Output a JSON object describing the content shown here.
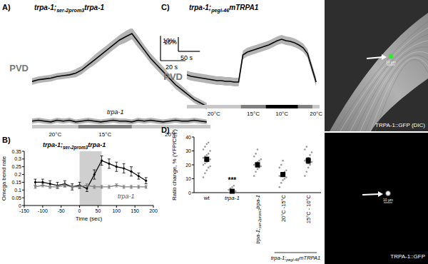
{
  "subscripts": [
    "ser-2prom3",
    "pegl-46"
  ],
  "chart_data": [
    {
      "panel_label": "A)",
      "type": "line",
      "title": "trpa-1;ser-2prom3trpa-1",
      "tick_labels": false,
      "x": [
        0,
        5,
        10,
        15,
        20,
        25,
        30,
        35,
        40,
        45,
        50,
        55,
        60,
        65,
        70,
        75,
        80,
        85,
        90,
        95,
        100,
        105,
        110,
        115,
        120,
        125,
        130,
        135,
        140
      ],
      "xlim": [
        0,
        143
      ],
      "ylim": [
        -4,
        56
      ],
      "series": [
        {
          "name": "PVD",
          "color": "#000000",
          "values": [
            24,
            25,
            25.5,
            26,
            27,
            27.5,
            28,
            29,
            31,
            34,
            37,
            40,
            43,
            46,
            49,
            51,
            53,
            48,
            43,
            38,
            34,
            30,
            26,
            22,
            19,
            16,
            13,
            11,
            9
          ],
          "errors": [
            2,
            2,
            2,
            2,
            2,
            2,
            2,
            2.5,
            2.5,
            2.5,
            3,
            3,
            3,
            3,
            3,
            3.5,
            3.5,
            3.5,
            3,
            3,
            3,
            3,
            2.5,
            2.5,
            2.5,
            2,
            2,
            2,
            2
          ]
        },
        {
          "name": "trpa-1",
          "color": "#000000",
          "values": [
            0,
            0.5,
            0,
            -0.5,
            0.5,
            0,
            0.5,
            -0.5,
            0,
            0.5,
            0,
            -0.5,
            0,
            0.5,
            0,
            0,
            -0.5,
            0.5,
            0,
            0.5,
            0,
            -0.5,
            0,
            0.5,
            0,
            0,
            0.5,
            0,
            -0.5
          ],
          "errors": [
            1.5,
            1.5,
            1.5,
            1.5,
            1.5,
            1.5,
            1.5,
            1.5,
            1.5,
            1.5,
            1.5,
            1.5,
            1.5,
            1.5,
            1.5,
            1.5,
            1.5,
            1.5,
            1.5,
            1.5,
            1.5,
            1.5,
            1.5,
            1.5,
            1.5,
            1.5,
            1.5,
            1.5,
            1.5
          ]
        }
      ],
      "temperature_bar": [
        {
          "label": "20°C",
          "start": 0,
          "end": 37,
          "color": "#c8c8c8"
        },
        {
          "label": "15°C",
          "start": 37,
          "end": 80,
          "color": "#808080"
        },
        {
          "label": "20°C",
          "start": 80,
          "end": 143,
          "color": "#c8c8c8"
        }
      ],
      "scale_bar": {
        "x": 20,
        "y": 15,
        "x_label": "20 s",
        "y_label": "15%"
      }
    },
    {
      "panel_label": "B)",
      "type": "line",
      "marker": "circle",
      "x": [
        -120,
        -100,
        -80,
        -60,
        -40,
        -20,
        0,
        20,
        40,
        60,
        80,
        100,
        120,
        140,
        160,
        180
      ],
      "xlim": [
        -150,
        200
      ],
      "ylim": [
        0,
        0.35
      ],
      "xticks": [
        -150,
        -100,
        -50,
        0,
        50,
        100,
        150,
        200
      ],
      "yticks": [
        0,
        0.05,
        0.1,
        0.15,
        0.2,
        0.25,
        0.3,
        0.35
      ],
      "x_label": "Time (sec)",
      "y_label": "Omega bend rate",
      "stimulus": {
        "start": 0,
        "end": 60
      },
      "series": [
        {
          "name": "trpa-1;ser-2prom3trpa-1",
          "color": "#000000",
          "values": [
            0.15,
            0.15,
            0.14,
            0.13,
            0.14,
            0.12,
            0.13,
            0.11,
            0.2,
            0.29,
            0.27,
            0.25,
            0.24,
            0.22,
            0.19,
            0.16
          ],
          "errors": [
            0.02,
            0.02,
            0.02,
            0.02,
            0.02,
            0.02,
            0.02,
            0.02,
            0.03,
            0.03,
            0.03,
            0.03,
            0.03,
            0.03,
            0.02,
            0.02
          ]
        },
        {
          "name": "trpa-1",
          "color": "#808080",
          "values": [
            0.12,
            0.13,
            0.12,
            0.12,
            0.13,
            0.12,
            0.12,
            0.13,
            0.12,
            0.12,
            0.12,
            0.13,
            0.12,
            0.12,
            0.12,
            0.12
          ],
          "errors": [
            0.01,
            0.01,
            0.01,
            0.01,
            0.01,
            0.01,
            0.01,
            0.01,
            0.01,
            0.01,
            0.01,
            0.01,
            0.01,
            0.01,
            0.01,
            0.01
          ]
        }
      ]
    },
    {
      "panel_label": "C)",
      "type": "line",
      "title": "trpa-1;pegl-46mTRPA1",
      "tick_labels": false,
      "x": [
        0,
        10,
        20,
        30,
        40,
        50,
        60,
        70,
        80,
        90,
        100,
        110,
        120,
        130,
        140,
        150,
        160,
        170,
        180,
        190,
        200,
        210,
        220,
        230,
        240,
        250,
        260,
        270,
        280,
        290,
        300
      ],
      "xlim": [
        0,
        308
      ],
      "ylim": [
        -5,
        47.5
      ],
      "series": [
        {
          "name": "PVD",
          "color": "#000000",
          "values": [
            15,
            14,
            13.5,
            13,
            12.5,
            12,
            11.5,
            11,
            11,
            10.5,
            10.5,
            10,
            10,
            29,
            31,
            32,
            33,
            34,
            35,
            36,
            37.5,
            39,
            40,
            39,
            38.5,
            37.5,
            36,
            34,
            30,
            20,
            10
          ],
          "errors": [
            3,
            3,
            3,
            3,
            3,
            3,
            3,
            3,
            3,
            3,
            3,
            3,
            3,
            3,
            3,
            3,
            3,
            3,
            3,
            3,
            3,
            3,
            3,
            3,
            3,
            3,
            3,
            3,
            3,
            3,
            3
          ]
        }
      ],
      "temperature_bar": [
        {
          "label": "20°C",
          "start": 0,
          "end": 125,
          "color": "#c8c8c8"
        },
        {
          "label": "15°C",
          "start": 125,
          "end": 183,
          "color": "#808080"
        },
        {
          "label": "10°C",
          "start": 183,
          "end": 258,
          "color": "#000000"
        },
        {
          "label": null,
          "start": 258,
          "end": 292,
          "color": "#808080"
        },
        {
          "label": "20°C",
          "start": 292,
          "end": 308,
          "color": "#c8c8c8"
        }
      ],
      "scale_bar": {
        "x": 50,
        "y": 10,
        "x_label": "50 s",
        "y_label": "10%"
      }
    },
    {
      "panel_label": "D)",
      "type": "dot_plot",
      "categories": [
        "wt",
        "trpa-1",
        "trpa-1;ser-2prom3trpa-1",
        "20°C -15°C",
        "15°C - 10°C"
      ],
      "y_label": "Ratio change, % (YFP/CFP)",
      "ylim": [
        0,
        40
      ],
      "yticks": [
        0,
        10,
        20,
        30,
        40
      ],
      "series": [
        {
          "color": "#000000",
          "values": [
            24,
            1,
            20,
            13,
            23
          ],
          "errors": [
            1.5,
            0.8,
            1.5,
            1.5,
            2
          ]
        }
      ],
      "points": [
        [
          11,
          14,
          16,
          18,
          19,
          20,
          21,
          22,
          23,
          24,
          25,
          26,
          27,
          28,
          30,
          31,
          33,
          35,
          36
        ],
        [
          0,
          0,
          0,
          1,
          1,
          2,
          3,
          4,
          5
        ],
        [
          12,
          15,
          17,
          18,
          19,
          20,
          21,
          22,
          23,
          24,
          26,
          28,
          31
        ],
        [
          4,
          7,
          9,
          10,
          11,
          12,
          13,
          14,
          15,
          16,
          18,
          20,
          23
        ],
        [
          12,
          15,
          18,
          20,
          22,
          23,
          24,
          25,
          27,
          29,
          31,
          33
        ]
      ],
      "annotations": [
        {
          "category": 1,
          "text": "***"
        }
      ],
      "category_group": {
        "label": "trpa-1;pegl-46mTRPA1",
        "from": 3,
        "to": 4
      }
    }
  ],
  "images": [
    {
      "label": "TRPA-1::GFP (DIC)",
      "scale_label": "10 μm"
    },
    {
      "label": "TRPA-1::GFP",
      "scale_label": "10 μm"
    }
  ]
}
